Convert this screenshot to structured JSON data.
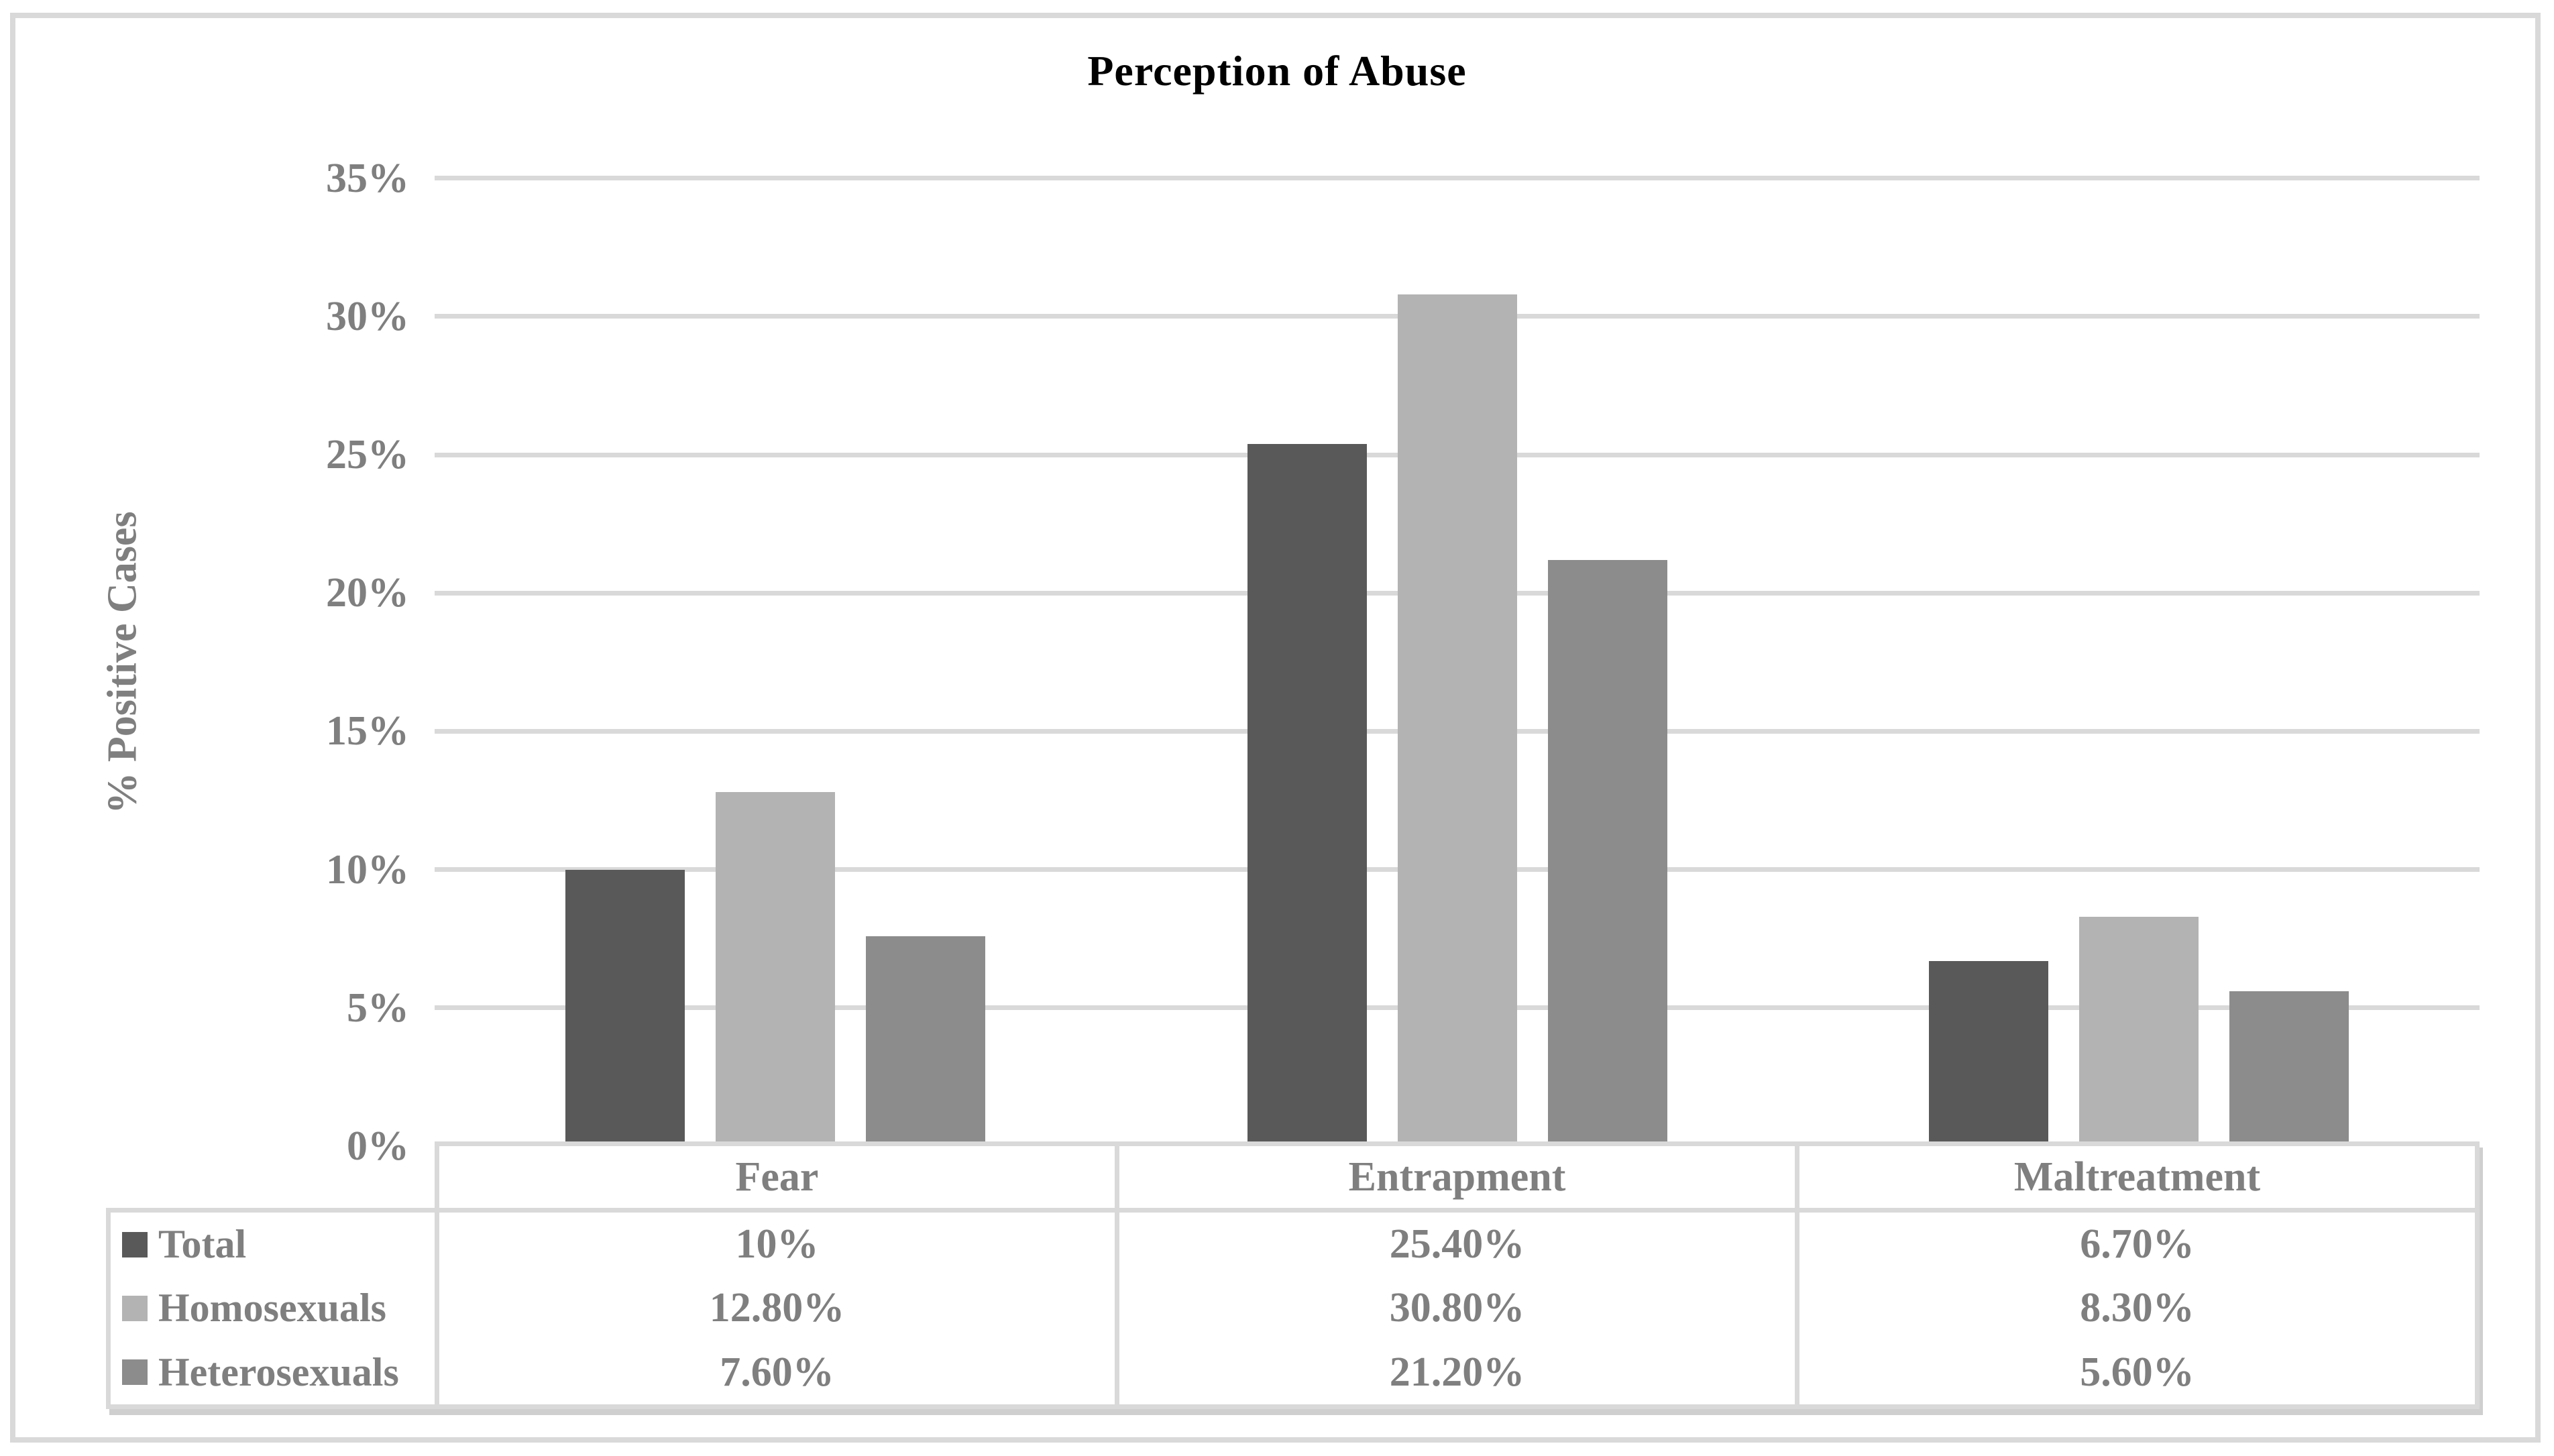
{
  "chart_data": {
    "type": "bar",
    "title": "Perception of Abuse",
    "ylabel": "% Positive Cases",
    "xlabel": "",
    "categories": [
      "Fear",
      "Entrapment",
      "Maltreatment"
    ],
    "series": [
      {
        "name": "Total",
        "color": "#595959",
        "values": [
          10,
          25.4,
          6.7
        ],
        "labels": [
          "10%",
          "25.40%",
          "6.70%"
        ]
      },
      {
        "name": "Homosexuals",
        "color": "#b3b3b3",
        "values": [
          12.8,
          30.8,
          8.3
        ],
        "labels": [
          "12.80%",
          "30.80%",
          "8.30%"
        ]
      },
      {
        "name": "Heterosexuals",
        "color": "#8c8c8c",
        "values": [
          7.6,
          21.2,
          5.6
        ],
        "labels": [
          "7.60%",
          "21.20%",
          "5.60%"
        ]
      }
    ],
    "y_axis": {
      "min": 0,
      "max": 35,
      "step": 5,
      "tick_labels": [
        "0%",
        "5%",
        "10%",
        "15%",
        "20%",
        "25%",
        "30%",
        "35%"
      ]
    },
    "ylim": [
      0,
      35
    ],
    "grid": true,
    "legend_position": "data-table-left"
  },
  "colors": {
    "background": "#ffffff",
    "gridline": "#d9d9d9",
    "table_border": "#d9d9d9",
    "axis_text": "#7f7f7f",
    "title_text": "#000000",
    "shadow": "#cfcfcf"
  }
}
